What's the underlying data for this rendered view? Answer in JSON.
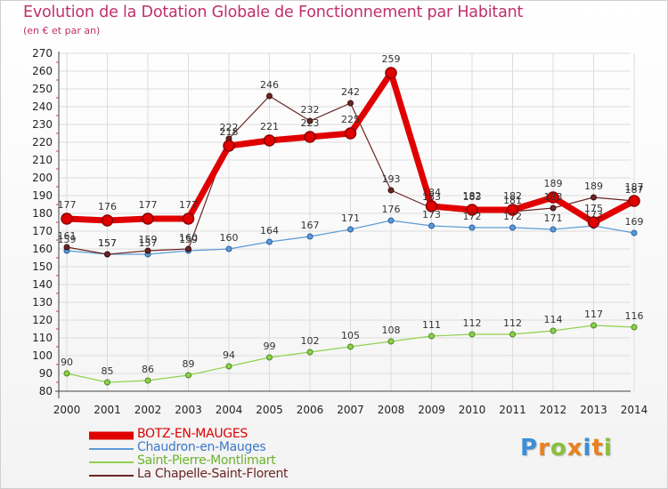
{
  "header": {
    "title": "Evolution de la Dotation Globale de Fonctionnement par Habitant",
    "subtitle": "(en € et par an)"
  },
  "logo": {
    "letters": [
      "P",
      "r",
      "o",
      "x",
      "i",
      "t",
      "i"
    ],
    "colors": [
      "#3b8fd8",
      "#e8821e",
      "#8ac03a",
      "#e8821e",
      "#3b8fd8",
      "#e8821e",
      "#8ac03a"
    ]
  },
  "chart_data": {
    "type": "line",
    "title": "Evolution de la Dotation Globale de Fonctionnement par Habitant",
    "subtitle": "(en € et par an)",
    "xlabel": "",
    "ylabel": "",
    "categories": [
      "2000",
      "2001",
      "2002",
      "2003",
      "2004",
      "2005",
      "2006",
      "2007",
      "2008",
      "2009",
      "2010",
      "2011",
      "2012",
      "2013",
      "2014"
    ],
    "ylim": [
      80,
      270
    ],
    "yticks": [
      80,
      90,
      100,
      110,
      120,
      130,
      140,
      150,
      160,
      170,
      180,
      190,
      200,
      210,
      220,
      230,
      240,
      250,
      260,
      270
    ],
    "grid": true,
    "legend_position": "bottom-left",
    "series": [
      {
        "name": "BOTZ-EN-MAUGES",
        "color": "#e00000",
        "values": [
          177,
          176,
          177,
          177,
          218,
          221,
          223,
          225,
          259,
          184,
          182,
          182,
          189,
          175,
          187
        ]
      },
      {
        "name": "Chaudron-en-Mauges",
        "color": "#5b9bd5",
        "values": [
          159,
          157,
          157,
          159,
          160,
          164,
          167,
          171,
          176,
          173,
          172,
          172,
          171,
          173,
          169
        ]
      },
      {
        "name": "Saint-Pierre-Montlimart",
        "color": "#8fd14f",
        "values": [
          90,
          85,
          86,
          89,
          94,
          99,
          102,
          105,
          108,
          111,
          112,
          112,
          114,
          117,
          116
        ]
      },
      {
        "name": "La Chapelle-Saint-Florent",
        "color": "#6b2424",
        "values": [
          161,
          157,
          159,
          160,
          222,
          246,
          232,
          242,
          193,
          183,
          183,
          181,
          183,
          189,
          187
        ]
      }
    ]
  }
}
